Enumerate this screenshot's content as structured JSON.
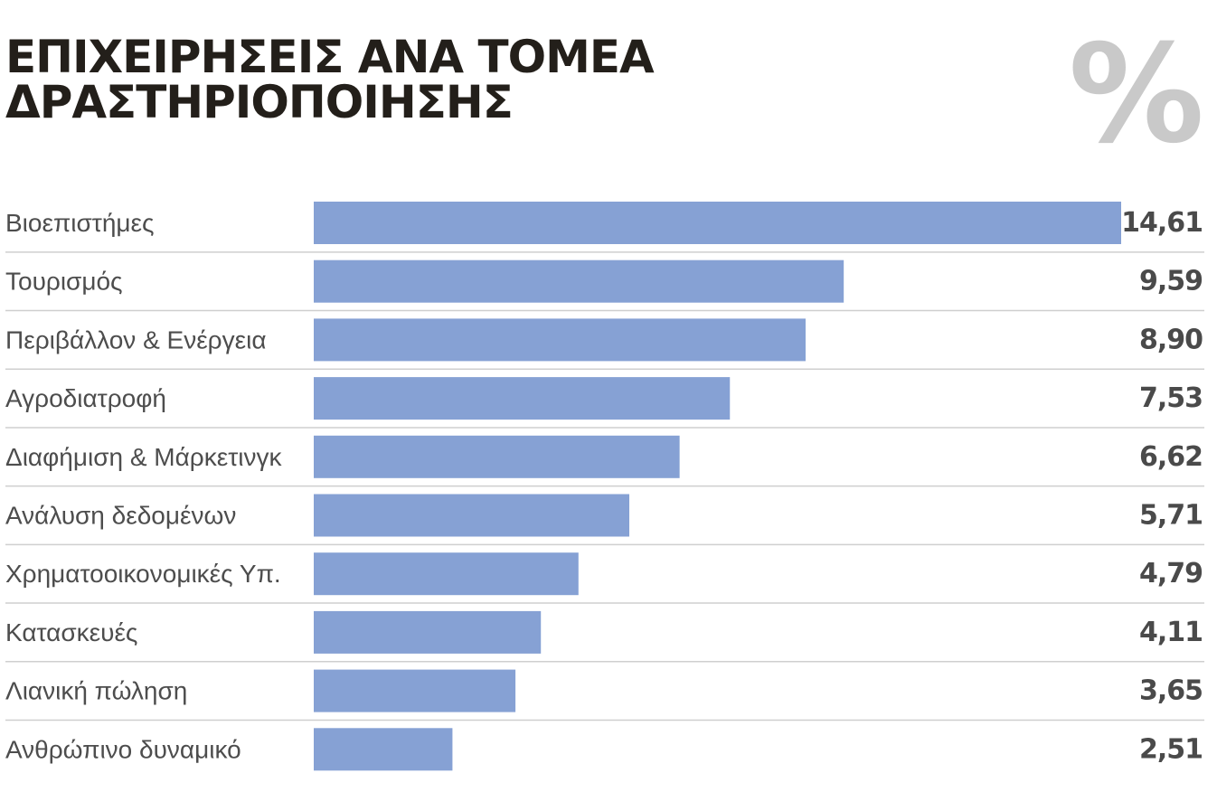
{
  "header": {
    "title_line1": "ΕΠΙΧΕΙΡΗΣΕΙΣ ΑΝΑ ΤΟΜΕΑ",
    "title_line2": "ΔΡΑΣΤΗΡΙΟΠΟΙΗΣΗΣ",
    "unit_symbol": "%"
  },
  "chart_data": {
    "type": "bar",
    "orientation": "horizontal",
    "title": "ΕΠΙΧΕΙΡΗΣΕΙΣ ΑΝΑ ΤΟΜΕΑ ΔΡΑΣΤΗΡΙΟΠΟΙΗΣΗΣ",
    "unit": "%",
    "categories": [
      "Βιοεπιστήμες",
      "Τουρισμός",
      "Περιβάλλον & Ενέργεια",
      "Αγροδιατροφή",
      "Διαφήμιση & Μάρκετινγκ",
      "Ανάλυση δεδομένων",
      "Χρηματοοικονομικές Υπ.",
      "Κατασκευές",
      "Λιανική πώληση",
      "Ανθρώπινο δυναμικό"
    ],
    "values": [
      14.61,
      9.59,
      8.9,
      7.53,
      6.62,
      5.71,
      4.79,
      4.11,
      3.65,
      2.51
    ],
    "value_labels": [
      "14,61",
      "9,59",
      "8,90",
      "7,53",
      "6,62",
      "5,71",
      "4,79",
      "4,11",
      "3,65",
      "2,51"
    ],
    "xlim": [
      0,
      14.61
    ],
    "grid": false,
    "legend": "none",
    "colors": {
      "bar": "#86a1d4",
      "separator": "#cfcfcf",
      "title": "#231f1a",
      "unit_symbol": "#c9c9c9"
    }
  }
}
